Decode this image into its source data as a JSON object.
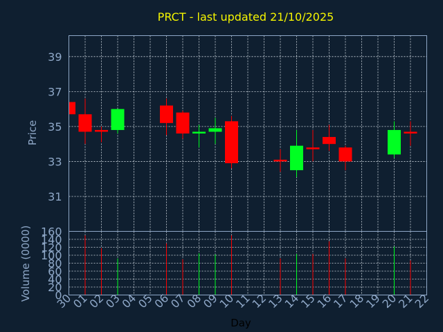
{
  "chart_data": {
    "type": "candlestick",
    "title": "PRCT - last updated 21/10/2025",
    "xlabel": "Day",
    "price_panel": {
      "ylabel": "Price",
      "ylim": [
        29.0,
        40.2
      ],
      "yticks": [
        31,
        33,
        35,
        37,
        39
      ]
    },
    "volume_panel": {
      "ylabel": "Volume (0000)",
      "ylim": [
        0,
        160
      ],
      "yticks": [
        0,
        20,
        40,
        60,
        80,
        100,
        120,
        140,
        160
      ]
    },
    "x_tick_labels": [
      "30",
      "01",
      "02",
      "03",
      "04",
      "05",
      "06",
      "07",
      "08",
      "09",
      "10",
      "11",
      "12",
      "13",
      "14",
      "15",
      "16",
      "17",
      "18",
      "19",
      "20",
      "21",
      "22"
    ],
    "colors": {
      "up": "#00ff22",
      "down": "#ff0000"
    },
    "candles": [
      {
        "day": "30",
        "open": 36.4,
        "high": 36.4,
        "low": 35.7,
        "close": 35.7,
        "volume": 0
      },
      {
        "day": "01",
        "open": 35.7,
        "high": 36.6,
        "low": 34.0,
        "close": 34.7,
        "volume": 150
      },
      {
        "day": "02",
        "open": 34.8,
        "high": 35.0,
        "low": 34.1,
        "close": 34.7,
        "volume": 118
      },
      {
        "day": "03",
        "open": 34.8,
        "high": 36.0,
        "low": 34.6,
        "close": 36.0,
        "volume": 92
      },
      {
        "day": "06",
        "open": 36.2,
        "high": 36.6,
        "low": 34.5,
        "close": 35.2,
        "volume": 130
      },
      {
        "day": "07",
        "open": 35.8,
        "high": 35.9,
        "low": 34.3,
        "close": 34.6,
        "volume": 90
      },
      {
        "day": "08",
        "open": 34.6,
        "high": 35.1,
        "low": 33.8,
        "close": 34.7,
        "volume": 105
      },
      {
        "day": "09",
        "open": 34.7,
        "high": 35.5,
        "low": 34.0,
        "close": 34.9,
        "volume": 102
      },
      {
        "day": "10",
        "open": 35.3,
        "high": 35.6,
        "low": 32.6,
        "close": 32.9,
        "volume": 150
      },
      {
        "day": "13",
        "open": 33.1,
        "high": 33.7,
        "low": 32.4,
        "close": 33.0,
        "volume": 92
      },
      {
        "day": "14",
        "open": 32.5,
        "high": 34.8,
        "low": 32.1,
        "close": 33.9,
        "volume": 103
      },
      {
        "day": "15",
        "open": 33.8,
        "high": 34.8,
        "low": 33.0,
        "close": 33.7,
        "volume": 103
      },
      {
        "day": "16",
        "open": 34.4,
        "high": 35.1,
        "low": 33.6,
        "close": 34.0,
        "volume": 135
      },
      {
        "day": "17",
        "open": 33.8,
        "high": 33.9,
        "low": 32.5,
        "close": 33.0,
        "volume": 92
      },
      {
        "day": "20",
        "open": 33.4,
        "high": 35.3,
        "low": 33.2,
        "close": 34.8,
        "volume": 122
      },
      {
        "day": "21",
        "open": 34.7,
        "high": 35.3,
        "low": 33.9,
        "close": 34.6,
        "volume": 87
      }
    ]
  }
}
